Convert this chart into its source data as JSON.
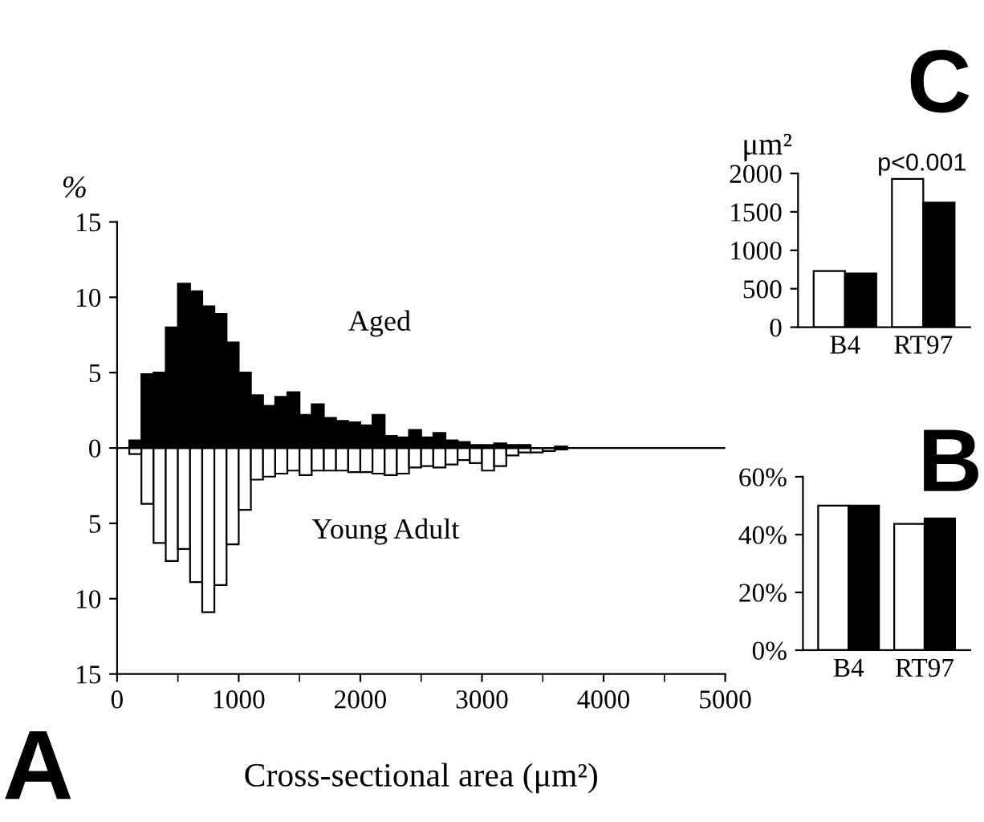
{
  "chart_data": [
    {
      "type": "bar",
      "stacked": true,
      "ylabel": "%",
      "xlabel": "Cross-sectional area (μm²)",
      "annotations": [
        "A"
      ],
      "x": [
        150,
        250,
        350,
        450,
        550,
        650,
        750,
        850,
        950,
        1050,
        1150,
        1250,
        1350,
        1450,
        1550,
        1650,
        1750,
        1850,
        1950,
        2050,
        2150,
        2250,
        2350,
        2450,
        2550,
        2650,
        2750,
        2850,
        2950,
        3050,
        3150,
        3250,
        3350,
        3450,
        3550,
        3650
      ],
      "series": [
        {
          "name": "Aged",
          "color": "#000000",
          "values": [
            0.5,
            4.9,
            5.0,
            8.0,
            10.9,
            10.4,
            9.4,
            8.9,
            7.0,
            5.0,
            3.5,
            2.8,
            3.4,
            3.7,
            2.2,
            2.9,
            2.0,
            1.8,
            1.7,
            1.5,
            2.2,
            0.8,
            0.7,
            1.2,
            0.7,
            1.0,
            0.5,
            0.4,
            0.2,
            0.2,
            0.3,
            0.2,
            0.2,
            null,
            null,
            0.1
          ]
        },
        {
          "name": "Young Adult",
          "color": "#ffffff",
          "values": [
            -0.4,
            -3.7,
            -6.3,
            -7.5,
            -6.7,
            -8.9,
            -10.9,
            -9.1,
            -6.4,
            -4.1,
            -2.1,
            -1.9,
            -1.7,
            -1.5,
            -1.8,
            -1.5,
            -1.5,
            -1.5,
            -1.6,
            -1.6,
            -1.7,
            -1.8,
            -1.7,
            -1.3,
            -1.2,
            -1.3,
            -1.1,
            -0.8,
            -1.0,
            -1.5,
            -1.2,
            -0.5,
            -0.3,
            -0.3,
            -0.2,
            -0.1
          ]
        }
      ],
      "xlim": [
        0,
        5000
      ],
      "xticks": [
        0,
        {
          "value": 500,
          "label": null
        },
        1000,
        {
          "value": 1500,
          "label": null
        },
        2000,
        {
          "value": 2500,
          "label": null
        },
        3000,
        {
          "value": 3500,
          "label": null
        },
        4000,
        {
          "value": 4500,
          "label": null
        },
        5000
      ],
      "ylim": [
        -15,
        15
      ],
      "yticks": [
        15,
        10,
        5,
        0,
        {
          "value": -5,
          "label": "5"
        },
        {
          "value": -10,
          "label": "10"
        },
        {
          "value": -15,
          "label": "15"
        }
      ]
    },
    {
      "type": "bar",
      "ylabel": "μm²",
      "annotations": [
        "C",
        "p<0.001"
      ],
      "categories": [
        "B4",
        "RT97"
      ],
      "series": [
        {
          "color": "#ffffff",
          "values": [
            730,
            1930
          ]
        },
        {
          "color": "#000000",
          "values": [
            700,
            1620
          ]
        }
      ],
      "ylim": [
        0,
        2000
      ],
      "yticks": [
        0,
        500,
        1000,
        1500,
        2000
      ]
    },
    {
      "type": "bar",
      "annotations": [
        "B"
      ],
      "categories": [
        "B4",
        "RT97"
      ],
      "series": [
        {
          "color": "#ffffff",
          "values": [
            50,
            43.7
          ]
        },
        {
          "color": "#000000",
          "values": [
            50,
            45.6
          ]
        }
      ],
      "ylim": [
        0,
        60
      ],
      "yticks": [
        {
          "value": 0,
          "label": "0%"
        },
        {
          "value": 20,
          "label": "20%"
        },
        {
          "value": 40,
          "label": "40%"
        },
        {
          "value": 60,
          "label": "60%"
        }
      ]
    }
  ]
}
